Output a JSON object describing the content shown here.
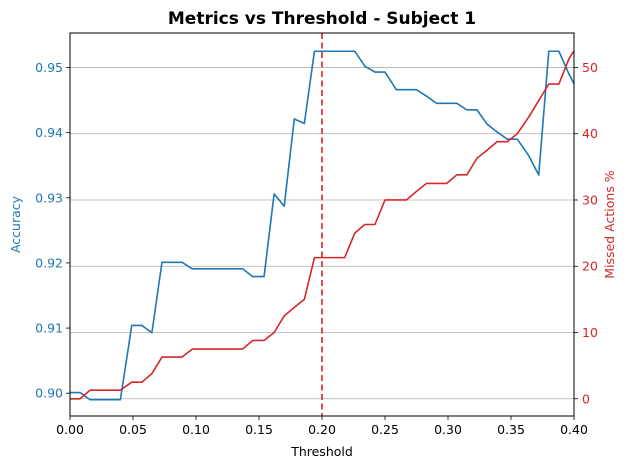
{
  "chart_data": {
    "type": "line",
    "title": "Metrics vs Threshold - Subject 1",
    "xlabel": "Threshold",
    "xlim": [
      0.0,
      0.4
    ],
    "xticks": [
      0.0,
      0.05,
      0.1,
      0.15,
      0.2,
      0.25,
      0.3,
      0.35,
      0.4
    ],
    "xtick_labels": [
      "0.00",
      "0.05",
      "0.10",
      "0.15",
      "0.20",
      "0.25",
      "0.30",
      "0.35",
      "0.40"
    ],
    "left_axis": {
      "label": "Accuracy",
      "color": "#1f77b4",
      "ylim": [
        0.8965,
        0.9553
      ],
      "ticks": [
        0.9,
        0.91,
        0.92,
        0.93,
        0.94,
        0.95
      ],
      "tick_labels": [
        "0.90",
        "0.91",
        "0.92",
        "0.93",
        "0.94",
        "0.95"
      ]
    },
    "right_axis": {
      "label": "Missed Actions %",
      "color": "#d62728",
      "ylim": [
        -2.6,
        55.2
      ],
      "ticks": [
        0,
        10,
        20,
        30,
        40,
        50
      ],
      "tick_labels": [
        "0",
        "10",
        "20",
        "30",
        "40",
        "50"
      ]
    },
    "grid": "horizontal-right-axis",
    "vline": {
      "x": 0.2,
      "color": "#d62728",
      "style": "dashed"
    },
    "series": [
      {
        "axis": "left",
        "color": "#1f77b4",
        "x": [
          0.0,
          0.008,
          0.016,
          0.024,
          0.032,
          0.04,
          0.049,
          0.057,
          0.065,
          0.073,
          0.081,
          0.089,
          0.097,
          0.105,
          0.113,
          0.121,
          0.129,
          0.137,
          0.145,
          0.154,
          0.162,
          0.17,
          0.178,
          0.186,
          0.194,
          0.202,
          0.21,
          0.218,
          0.226,
          0.234,
          0.242,
          0.25,
          0.259,
          0.267,
          0.275,
          0.283,
          0.291,
          0.299,
          0.307,
          0.315,
          0.323,
          0.331,
          0.339,
          0.347,
          0.355,
          0.364,
          0.372,
          0.38,
          0.388,
          0.396,
          0.4
        ],
        "y": [
          0.9001,
          0.9001,
          0.899,
          0.899,
          0.899,
          0.899,
          0.9104,
          0.9104,
          0.9093,
          0.9201,
          0.9201,
          0.9201,
          0.9191,
          0.9191,
          0.9191,
          0.9191,
          0.9191,
          0.9191,
          0.9179,
          0.9179,
          0.9306,
          0.9287,
          0.9421,
          0.9414,
          0.9525,
          0.9525,
          0.9525,
          0.9525,
          0.9525,
          0.9502,
          0.9493,
          0.9493,
          0.9466,
          0.9466,
          0.9466,
          0.9456,
          0.9445,
          0.9445,
          0.9445,
          0.9435,
          0.9435,
          0.9413,
          0.9401,
          0.939,
          0.939,
          0.9365,
          0.9335,
          0.9525,
          0.9525,
          0.949,
          0.9475
        ]
      },
      {
        "axis": "right",
        "color": "#d62728",
        "x": [
          0.0,
          0.008,
          0.016,
          0.024,
          0.032,
          0.04,
          0.049,
          0.057,
          0.065,
          0.073,
          0.081,
          0.089,
          0.097,
          0.105,
          0.113,
          0.121,
          0.129,
          0.137,
          0.145,
          0.154,
          0.162,
          0.17,
          0.178,
          0.186,
          0.194,
          0.202,
          0.21,
          0.218,
          0.226,
          0.234,
          0.242,
          0.25,
          0.259,
          0.267,
          0.275,
          0.283,
          0.291,
          0.299,
          0.307,
          0.315,
          0.323,
          0.331,
          0.339,
          0.347,
          0.355,
          0.364,
          0.372,
          0.38,
          0.388,
          0.396,
          0.4
        ],
        "y": [
          0.0,
          0.0,
          1.3,
          1.3,
          1.3,
          1.3,
          2.5,
          2.5,
          3.8,
          6.3,
          6.3,
          6.3,
          7.5,
          7.5,
          7.5,
          7.5,
          7.5,
          7.5,
          8.8,
          8.8,
          10.0,
          12.5,
          13.8,
          15.0,
          21.3,
          21.3,
          21.3,
          21.3,
          25.0,
          26.3,
          26.3,
          30.0,
          30.0,
          30.0,
          31.3,
          32.5,
          32.5,
          32.5,
          33.8,
          33.8,
          36.3,
          37.5,
          38.8,
          38.8,
          40.0,
          42.5,
          45.0,
          47.5,
          47.5,
          51.3,
          52.5
        ]
      }
    ]
  }
}
